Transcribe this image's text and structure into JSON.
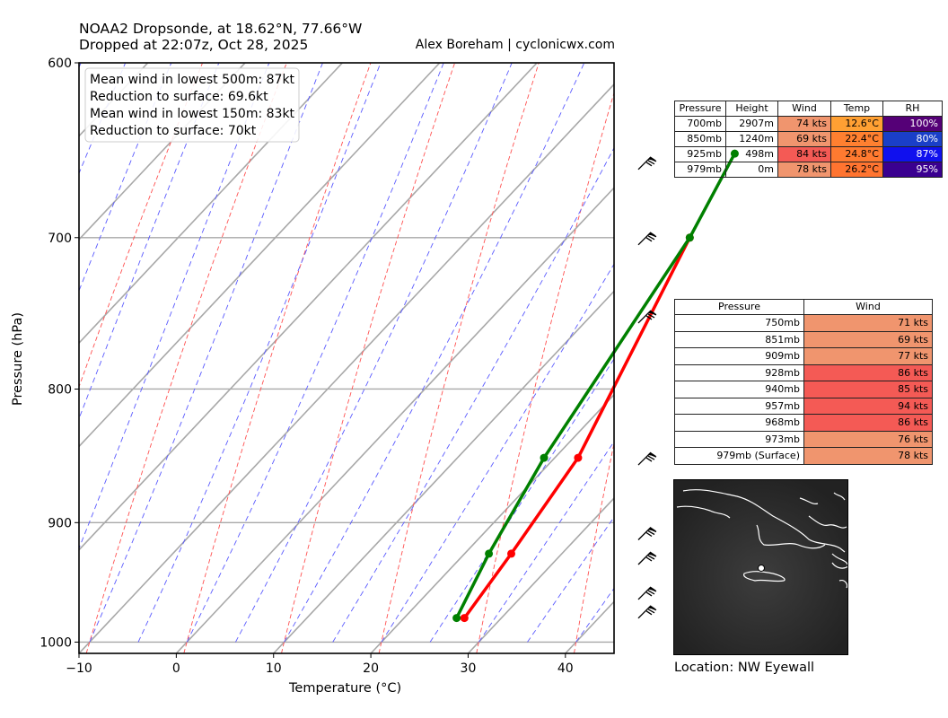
{
  "header": {
    "title_line1": "NOAA2 Dropsonde, at 18.62°N, 77.66°W",
    "title_line2": "Dropped at 22:07z, Oct 28, 2025",
    "credit": "Alex Boreham | cyclonicwx.com"
  },
  "chart_data": {
    "type": "line",
    "subtype": "skew-t",
    "xlabel": "Temperature (°C)",
    "ylabel": "Pressure (hPa)",
    "xlim": [
      -10,
      45
    ],
    "ylim": [
      1010,
      600
    ],
    "x_ticks": [
      "−10",
      "0",
      "10",
      "20",
      "30",
      "40"
    ],
    "x_tick_values": [
      -10,
      0,
      10,
      20,
      30,
      40
    ],
    "y_ticks": [
      "600",
      "700",
      "800",
      "900",
      "1000"
    ],
    "y_tick_values": [
      600,
      700,
      800,
      900,
      1000
    ],
    "series": [
      {
        "name": "Temperature",
        "color": "#ff0000",
        "points": [
          {
            "p": 979,
            "t": 26.2
          },
          {
            "p": 925,
            "t": 24.8
          },
          {
            "p": 850,
            "t": 22.4
          },
          {
            "p": 700,
            "t": 12.6
          }
        ]
      },
      {
        "name": "Dewpoint",
        "color": "#008000",
        "points": [
          {
            "p": 979,
            "t": 25.4
          },
          {
            "p": 925,
            "t": 22.5
          },
          {
            "p": 850,
            "t": 18.9
          },
          {
            "p": 700,
            "t": 12.6
          },
          {
            "p": 650,
            "t": 9.1
          }
        ]
      }
    ],
    "annotation": [
      "Mean wind in lowest 500m: 87kt",
      "Reduction to surface: 69.6kt",
      "Mean wind in lowest 150m:  83kt",
      "Reduction to surface: 70kt"
    ],
    "wind_barb_levels": [
      655,
      700,
      750,
      850,
      908,
      928,
      957,
      973
    ]
  },
  "summary_table": {
    "headers": [
      "Pressure",
      "Height",
      "Wind",
      "Temp",
      "RH"
    ],
    "rows": [
      {
        "pressure": "700mb",
        "height": "2907m",
        "wind": "74 kts",
        "temp": "12.6°C",
        "rh": "100%"
      },
      {
        "pressure": "850mb",
        "height": "1240m",
        "wind": "69 kts",
        "temp": "22.4°C",
        "rh": "80%"
      },
      {
        "pressure": "925mb",
        "height": "498m",
        "wind": "84 kts",
        "temp": "24.8°C",
        "rh": "87%"
      },
      {
        "pressure": "979mb",
        "height": "0m",
        "wind": "78 kts",
        "temp": "26.2°C",
        "rh": "95%"
      }
    ],
    "colors": {
      "wind": [
        "#f0956e",
        "#f0956e",
        "#f45a55",
        "#f0956e"
      ],
      "temp": [
        "#ffa033",
        "#ff8030",
        "#ff7a30",
        "#ff7430"
      ],
      "rh": [
        "#550077",
        "#1a3fc8",
        "#1010ee",
        "#3a0090"
      ],
      "rh_text": [
        "#ffffff",
        "#ffffff",
        "#ffffff",
        "#ffffff"
      ]
    }
  },
  "wind_table": {
    "headers": [
      "Pressure",
      "Wind"
    ],
    "rows": [
      {
        "pressure": "750mb",
        "wind": "71 kts"
      },
      {
        "pressure": "851mb",
        "wind": "69 kts"
      },
      {
        "pressure": "909mb",
        "wind": "77 kts"
      },
      {
        "pressure": "928mb",
        "wind": "86 kts"
      },
      {
        "pressure": "940mb",
        "wind": "85 kts"
      },
      {
        "pressure": "957mb",
        "wind": "94 kts"
      },
      {
        "pressure": "968mb",
        "wind": "86 kts"
      },
      {
        "pressure": "973mb",
        "wind": "76 kts"
      },
      {
        "pressure": "979mb (Surface)",
        "wind": "78 kts"
      }
    ],
    "colors": [
      "#f0956e",
      "#f0956e",
      "#f0956e",
      "#f45a55",
      "#f45a55",
      "#f45a55",
      "#f45a55",
      "#f0956e",
      "#f0956e"
    ]
  },
  "map": {
    "location_label": "Location: NW Eyewall"
  }
}
